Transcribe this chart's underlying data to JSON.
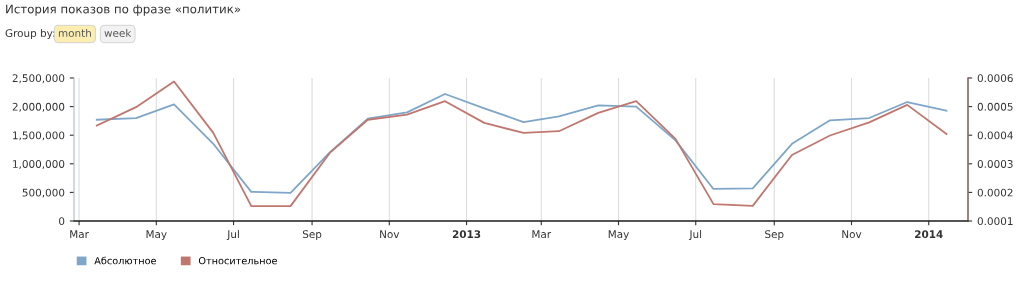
{
  "chart_data": {
    "type": "line",
    "title": "История показов по фразе «политик»",
    "annotations": [
      "Group by:",
      "month",
      "week"
    ],
    "x": [
      "2012-03-15",
      "2012-04-15",
      "2012-05-15",
      "2012-06-15",
      "2012-07-15",
      "2012-08-15",
      "2012-09-15",
      "2012-10-15",
      "2012-11-15",
      "2012-12-15",
      "2013-01-15",
      "2013-02-15",
      "2013-03-15",
      "2013-04-15",
      "2013-05-15",
      "2013-06-15",
      "2013-07-15",
      "2013-08-15",
      "2013-09-15",
      "2013-10-15",
      "2013-11-15",
      "2013-12-15",
      "2014-01-15"
    ],
    "series": [
      {
        "name": "Абсолютное",
        "color": "#7fa6c8",
        "values": [
          1770000,
          1800000,
          2040000,
          1350000,
          510000,
          490000,
          1200000,
          1790000,
          1900000,
          2220000,
          1970000,
          1730000,
          1830000,
          2020000,
          2000000,
          1410000,
          560000,
          570000,
          1350000,
          1760000,
          1800000,
          2080000,
          1930000
        ]
      },
      {
        "name": "Относительное",
        "color": "#c0776f",
        "axis": "y2",
        "values": [
          0.000434,
          0.000498,
          0.000588,
          0.000408,
          0.000152,
          0.000152,
          0.000338,
          0.000454,
          0.000472,
          0.000519,
          0.000443,
          0.000408,
          0.000414,
          0.000478,
          0.000519,
          0.000387,
          0.000159,
          0.000153,
          0.000331,
          0.000399,
          0.000445,
          0.000506,
          0.000404
        ]
      }
    ],
    "xlim": [
      "2012-02-26",
      "2014-02-01"
    ],
    "xticks": [
      {
        "value": "2012-03-01",
        "label": "Mar"
      },
      {
        "value": "2012-05-01",
        "label": "May"
      },
      {
        "value": "2012-07-01",
        "label": "Jul"
      },
      {
        "value": "2012-09-01",
        "label": "Sep"
      },
      {
        "value": "2012-11-01",
        "label": "Nov"
      },
      {
        "value": "2013-01-01",
        "label": "2013"
      },
      {
        "value": "2013-03-01",
        "label": "Mar"
      },
      {
        "value": "2013-05-01",
        "label": "May"
      },
      {
        "value": "2013-07-01",
        "label": "Jul"
      },
      {
        "value": "2013-09-01",
        "label": "Sep"
      },
      {
        "value": "2013-11-01",
        "label": "Nov"
      },
      {
        "value": "2014-01-01",
        "label": "2014"
      }
    ],
    "ylim": [
      0,
      2500000
    ],
    "yticks": [
      {
        "value": 0,
        "label": "0"
      },
      {
        "value": 500000,
        "label": "500,000"
      },
      {
        "value": 1000000,
        "label": "1,000,000"
      },
      {
        "value": 1500000,
        "label": "1,500,000"
      },
      {
        "value": 2000000,
        "label": "2,000,000"
      },
      {
        "value": 2500000,
        "label": "2,500,000"
      }
    ],
    "y2lim": [
      0.0001,
      0.0006
    ],
    "y2ticks": [
      {
        "value": 0.0001,
        "label": "0.0001"
      },
      {
        "value": 0.0002,
        "label": "0.0002"
      },
      {
        "value": 0.0003,
        "label": "0.0003"
      },
      {
        "value": 0.0004,
        "label": "0.0004"
      },
      {
        "value": 0.0005,
        "label": "0.0005"
      },
      {
        "value": 0.0006,
        "label": "0.0006"
      }
    ],
    "grid": "x",
    "legend": "bottom left",
    "marker": "none",
    "line_style": "solid"
  }
}
